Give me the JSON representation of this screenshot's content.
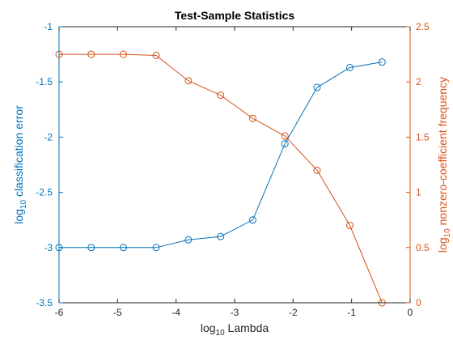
{
  "chart_data": {
    "type": "line",
    "title": "Test-Sample Statistics",
    "xlabel": {
      "base": "log",
      "sub": "10",
      "rest": " Lambda"
    },
    "ylabel_left": {
      "base": "log",
      "sub": "10",
      "rest": " classification error"
    },
    "ylabel_right": {
      "base": "log",
      "sub": "10",
      "rest": " nonzero-coefficient frequency"
    },
    "xlim": [
      -6,
      0
    ],
    "ylim_left": [
      -3.5,
      -1
    ],
    "ylim_right": [
      0,
      2.5
    ],
    "x_ticks": [
      "-6",
      "-5",
      "-4",
      "-3",
      "-2",
      "-1",
      "0"
    ],
    "y_left_ticks": [
      "-3.5",
      "-3",
      "-2.5",
      "-2",
      "-1.5",
      "-1"
    ],
    "y_right_ticks": [
      "0",
      "0.5",
      "1",
      "1.5",
      "2",
      "2.5"
    ],
    "grid": false,
    "legend": "none",
    "colors": {
      "left": "#0072BD",
      "right": "#D95319",
      "axis": "#262626"
    },
    "x": [
      -6.0,
      -5.45,
      -4.9,
      -4.34,
      -3.79,
      -3.24,
      -2.69,
      -2.14,
      -1.59,
      -1.03,
      -0.48
    ],
    "series": [
      {
        "axis": "left",
        "values": [
          -3.0,
          -3.0,
          -3.0,
          -3.0,
          -2.93,
          -2.9,
          -2.75,
          -2.06,
          -1.55,
          -1.37,
          -1.32
        ]
      },
      {
        "axis": "right",
        "values": [
          2.25,
          2.25,
          2.25,
          2.24,
          2.01,
          1.88,
          1.67,
          1.51,
          1.2,
          0.7,
          0.0
        ]
      }
    ]
  }
}
